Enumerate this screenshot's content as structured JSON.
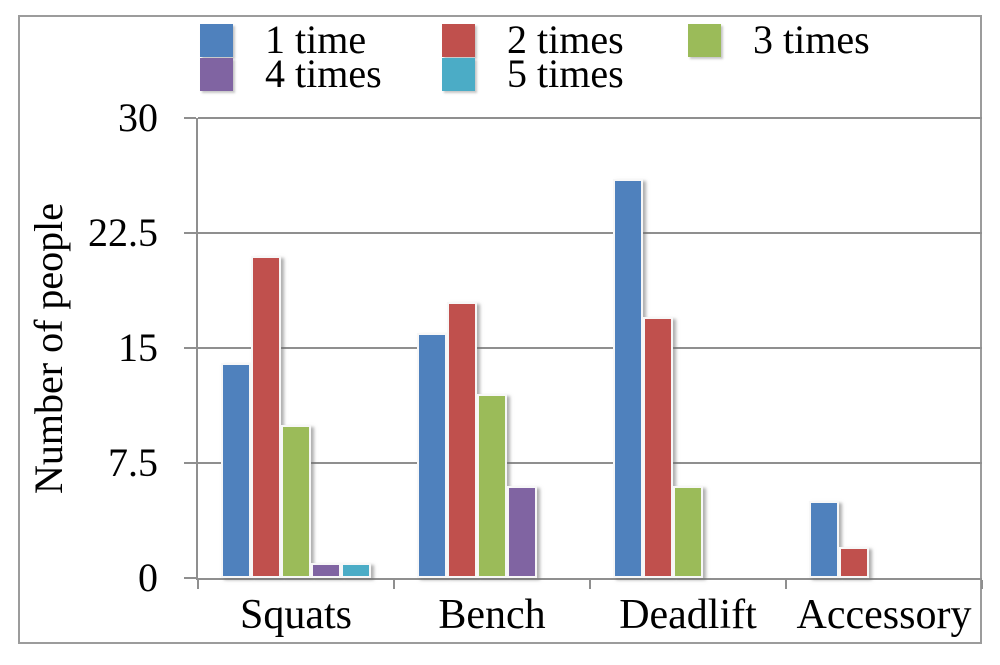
{
  "chart_data": {
    "type": "bar",
    "title": "",
    "ylabel": "Number of people",
    "categories": [
      "Squats",
      "Bench",
      "Deadlift",
      "Accessory"
    ],
    "series": [
      {
        "name": "1 time",
        "color": "#4F81BD",
        "values": [
          14,
          16,
          26,
          5
        ]
      },
      {
        "name": "2 times",
        "color": "#C0504D",
        "values": [
          21,
          18,
          17,
          2
        ]
      },
      {
        "name": "3 times",
        "color": "#9BBB59",
        "values": [
          10,
          12,
          6,
          0
        ]
      },
      {
        "name": "4 times",
        "color": "#8064A2",
        "values": [
          1,
          6,
          0,
          0
        ]
      },
      {
        "name": "5 times",
        "color": "#4BACC6",
        "values": [
          1,
          0,
          0,
          0
        ]
      }
    ],
    "ylim": [
      0,
      30
    ],
    "yticks": [
      0,
      7.5,
      15,
      22.5,
      30
    ],
    "ytick_labels": [
      "0",
      "7.5",
      "15",
      "22.5",
      "30"
    ],
    "grid": true,
    "legend_position": "top",
    "axis_color": "#8f8f8f"
  }
}
